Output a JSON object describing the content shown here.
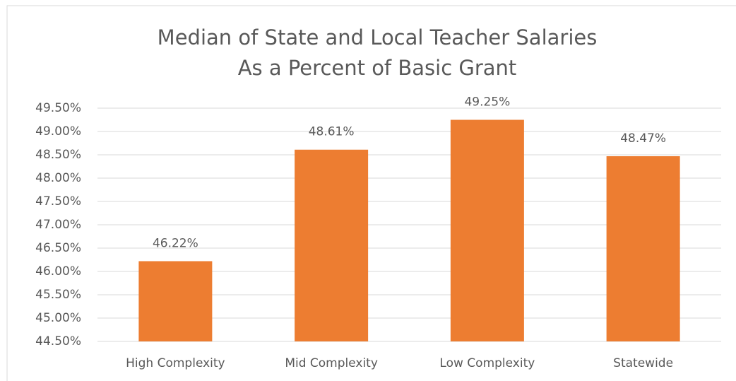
{
  "chart_data": {
    "type": "bar",
    "title": [
      "Median of State and Local Teacher Salaries",
      "As a Percent of Basic Grant"
    ],
    "categories": [
      "High Complexity",
      "Mid Complexity",
      "Low Complexity",
      "Statewide"
    ],
    "values": [
      46.22,
      48.61,
      49.25,
      48.47
    ],
    "value_labels": [
      "46.22%",
      "48.61%",
      "49.25%",
      "48.47%"
    ],
    "color": "#ed7d31",
    "ylim": [
      44.5,
      49.5
    ],
    "yticks": [
      {
        "value": 44.5,
        "label": "44.50%"
      },
      {
        "value": 45,
        "label": "45.00%"
      },
      {
        "value": 45.5,
        "label": "45.50%"
      },
      {
        "value": 46,
        "label": "46.00%"
      },
      {
        "value": 46.5,
        "label": "46.50%"
      },
      {
        "value": 47,
        "label": "47.00%"
      },
      {
        "value": 47.5,
        "label": "47.50%"
      },
      {
        "value": 48,
        "label": "48.00%"
      },
      {
        "value": 48.5,
        "label": "48.50%"
      },
      {
        "value": 49,
        "label": "49.00%"
      },
      {
        "value": 49.5,
        "label": "49.50%"
      }
    ],
    "grid": true
  }
}
